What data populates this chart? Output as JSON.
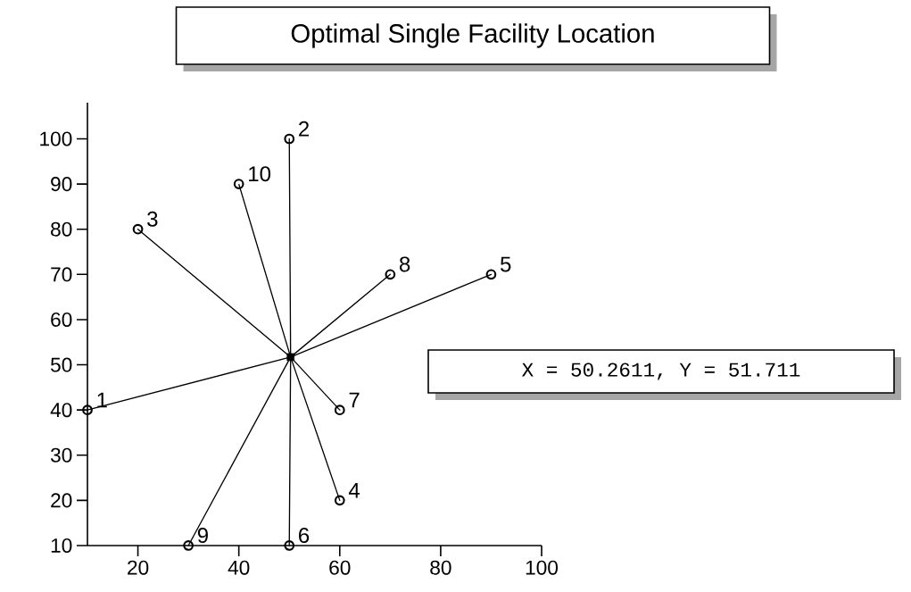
{
  "chart_data": {
    "type": "scatter",
    "title": "Optimal Single Facility Location",
    "xlim": [
      10,
      100
    ],
    "ylim": [
      10,
      108
    ],
    "xticks": [
      20,
      40,
      60,
      80,
      100
    ],
    "yticks": [
      10,
      20,
      30,
      40,
      50,
      60,
      70,
      80,
      90,
      100
    ],
    "series": [
      {
        "type": "line",
        "color": "#000000",
        "marker": "none",
        "x": [
          50.2611,
          10,
          50.2611,
          50,
          50.2611,
          20,
          50.2611,
          60,
          50.2611,
          90,
          50.2611,
          50,
          50.2611,
          60,
          50.2611,
          70,
          50.2611,
          30,
          50.2611,
          40
        ],
        "values": [
          51.711,
          40,
          51.711,
          100,
          51.711,
          80,
          51.711,
          20,
          51.711,
          70,
          51.711,
          10,
          51.711,
          40,
          51.711,
          70,
          51.711,
          10,
          51.711,
          90
        ]
      },
      {
        "color": "#000000",
        "marker": "circle",
        "x": [
          10,
          50,
          20,
          60,
          90,
          50,
          60,
          70,
          30,
          40
        ],
        "values": [
          40,
          100,
          80,
          20,
          70,
          10,
          40,
          70,
          10,
          90
        ]
      },
      {
        "color": "#000000",
        "marker": "square",
        "x": [
          50.2611
        ],
        "values": [
          51.711
        ]
      }
    ],
    "annotations": [
      "X = 50.2611, Y = 51.711",
      {
        "text": "1",
        "x": 10,
        "y": 40
      },
      {
        "text": "2",
        "x": 50,
        "y": 100
      },
      {
        "text": "3",
        "x": 20,
        "y": 80
      },
      {
        "text": "4",
        "x": 60,
        "y": 20
      },
      {
        "text": "5",
        "x": 90,
        "y": 70
      },
      {
        "text": "6",
        "x": 50,
        "y": 10
      },
      {
        "text": "7",
        "x": 60,
        "y": 40
      },
      {
        "text": "8",
        "x": 70,
        "y": 70
      },
      {
        "text": "9",
        "x": 30,
        "y": 10
      },
      {
        "text": "10",
        "x": 40,
        "y": 90
      }
    ]
  }
}
